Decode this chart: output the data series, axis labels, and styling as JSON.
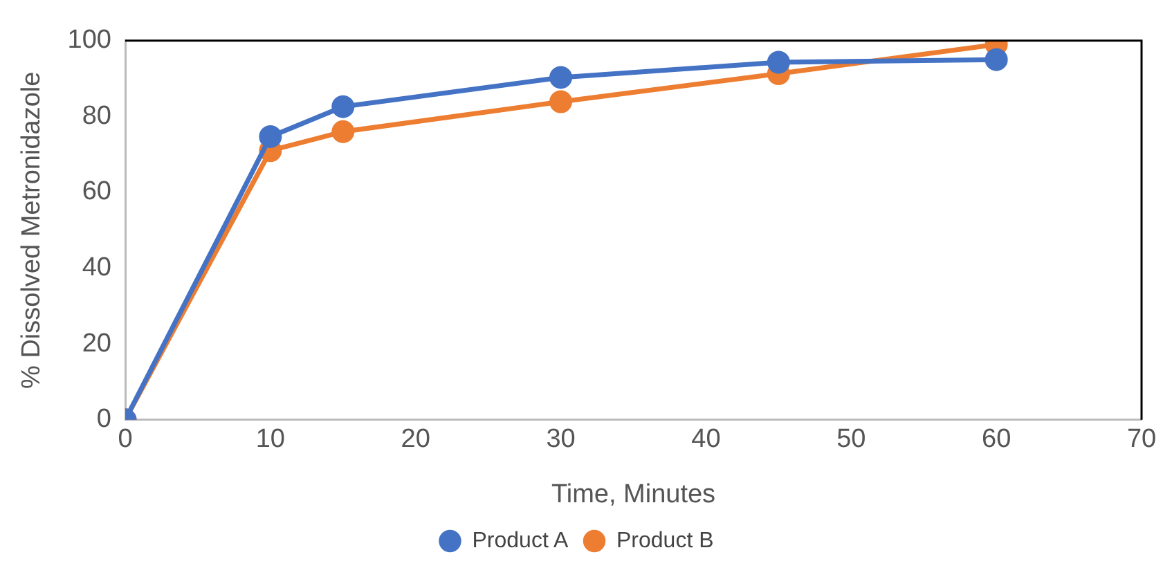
{
  "chart_data": {
    "type": "line",
    "xlabel": "Time, Minutes",
    "ylabel": "% Dissolved Metronidazole",
    "x": [
      0,
      10,
      15,
      30,
      45,
      60
    ],
    "series": [
      {
        "name": "Product A",
        "color": "#4472c4",
        "values": [
          0,
          74.7,
          82.6,
          90.3,
          94.3,
          95.0
        ]
      },
      {
        "name": "Product B",
        "color": "#ed7d31",
        "values": [
          0,
          71.0,
          76.0,
          83.9,
          91.3,
          99.0
        ]
      }
    ],
    "xlim": [
      0,
      70
    ],
    "xticks": [
      0,
      10,
      20,
      30,
      40,
      50,
      60,
      70
    ],
    "ylim": [
      0,
      100
    ],
    "yticks": [
      0,
      20,
      40,
      60,
      80,
      100
    ],
    "grid": false,
    "legend": "bottom",
    "marker": "circle",
    "line_style": "solid"
  }
}
